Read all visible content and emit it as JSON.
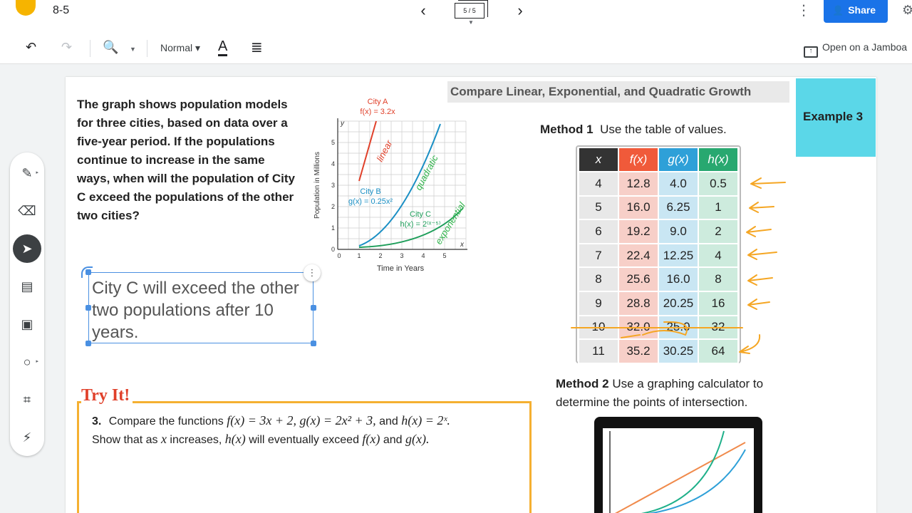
{
  "header": {
    "doc_title": "8-5",
    "frame_indicator": "5 / 5",
    "share_label": "Share"
  },
  "toolbar": {
    "style_label": "Normal",
    "text_color_label": "A",
    "open_label": "Open on a Jamboa"
  },
  "sidebar": {
    "items": [
      "pen",
      "eraser",
      "select",
      "sticky-note",
      "image",
      "circle",
      "text-box",
      "laser"
    ]
  },
  "slide": {
    "question": "The graph shows population models for three cities, based on data over a five-year period. If the populations continue to increase in the same ways, when will the population of City C exceed the populations of the other two cities?",
    "answer": "City C will exceed the other two populations after 10 years.",
    "compare_title": "Compare Linear, Exponential, and Quadratic Growth",
    "example_label": "Example 3",
    "method1_bold": "Method 1",
    "method1_text": "Use the table of values.",
    "method2_bold": "Method 2",
    "method2_text": "Use a graphing calculator to determine the points of intersection.",
    "try_it": "Try It!",
    "try_num": "3.",
    "try_line1_a": "Compare the functions",
    "try_line1_f": "f(x) = 3x + 2,",
    "try_line1_g": "g(x) = 2x² + 3,",
    "try_line1_and": "and",
    "try_line1_h": "h(x) = 2ˣ.",
    "try_line2_a": "Show that as",
    "try_line2_x": "x",
    "try_line2_b": "increases,",
    "try_line2_h": "h(x)",
    "try_line2_c": "will eventually exceed",
    "try_line2_f": "f(x)",
    "try_line2_and": "and",
    "try_line2_g": "g(x)."
  },
  "table": {
    "headers": [
      "x",
      "f(x)",
      "g(x)",
      "h(x)"
    ],
    "rows": [
      [
        "4",
        "12.8",
        "4.0",
        "0.5"
      ],
      [
        "5",
        "16.0",
        "6.25",
        "1"
      ],
      [
        "6",
        "19.2",
        "9.0",
        "2"
      ],
      [
        "7",
        "22.4",
        "12.25",
        "4"
      ],
      [
        "8",
        "25.6",
        "16.0",
        "8"
      ],
      [
        "9",
        "28.8",
        "20.25",
        "16"
      ],
      [
        "10",
        "32.0",
        "25.0",
        "32"
      ],
      [
        "11",
        "35.2",
        "30.25",
        "64"
      ]
    ]
  },
  "graph": {
    "y_axis_label": "Population in Millions",
    "x_axis_label": "Time in Years",
    "y_var": "y",
    "x_var": "x",
    "x_ticks": [
      "0",
      "1",
      "2",
      "3",
      "4",
      "5"
    ],
    "y_ticks": [
      "0",
      "1",
      "2",
      "3",
      "4",
      "5"
    ],
    "city_a": "City A",
    "city_a_eq": "f(x) = 3.2x",
    "city_b": "City B",
    "city_b_eq": "g(x) = 0.25x²",
    "city_c": "City C",
    "city_c_eq": "h(x) = 2⁽ˣ⁻⁵⁾",
    "hand_linear": "linear",
    "hand_quadratic": "quadratic",
    "hand_exponential": "exponential"
  },
  "colors": {
    "city_a": "#e0402a",
    "city_b": "#1a8fc4",
    "city_c": "#1e9e5a",
    "annotation_orange": "#f5a623",
    "annotation_green": "#2fb34a"
  }
}
